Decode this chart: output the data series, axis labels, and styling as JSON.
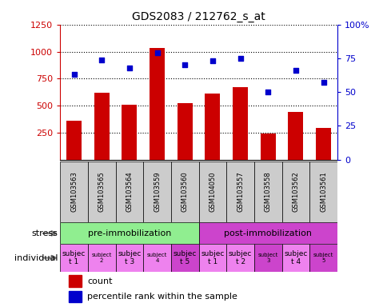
{
  "title": "GDS2083 / 212762_s_at",
  "samples": [
    "GSM103563",
    "GSM103565",
    "GSM103564",
    "GSM103559",
    "GSM103560",
    "GSM104050",
    "GSM103557",
    "GSM103558",
    "GSM103562",
    "GSM103561"
  ],
  "counts": [
    360,
    620,
    510,
    1030,
    520,
    610,
    670,
    240,
    440,
    295
  ],
  "percentiles": [
    63,
    74,
    68,
    79,
    70,
    73,
    75,
    50,
    66,
    57
  ],
  "ylim_left": [
    0,
    1250
  ],
  "ylim_right": [
    0,
    100
  ],
  "yticks_left": [
    250,
    500,
    750,
    1000,
    1250
  ],
  "yticks_right": [
    0,
    25,
    50,
    75,
    100
  ],
  "stress_groups": [
    {
      "label": "pre-immobilization",
      "start": 0,
      "end": 5,
      "color": "#90EE90"
    },
    {
      "label": "post-immobilization",
      "start": 5,
      "end": 10,
      "color": "#CC44CC"
    }
  ],
  "individuals": [
    {
      "text": "subjec\nt 1",
      "color": "#EE82EE"
    },
    {
      "text": "subject\n2",
      "color": "#EE82EE",
      "small": true
    },
    {
      "text": "subjec\nt 3",
      "color": "#EE82EE"
    },
    {
      "text": "subject\n4",
      "color": "#EE82EE",
      "small": true
    },
    {
      "text": "subjec\nt 5",
      "color": "#CC44CC"
    },
    {
      "text": "subjec\nt 1",
      "color": "#EE82EE"
    },
    {
      "text": "subjec\nt 2",
      "color": "#EE82EE"
    },
    {
      "text": "subject\n3",
      "color": "#CC44CC",
      "small": true
    },
    {
      "text": "subjec\nt 4",
      "color": "#EE82EE"
    },
    {
      "text": "subject\n5",
      "color": "#CC44CC",
      "small": true
    }
  ],
  "bar_color": "#CC0000",
  "dot_color": "#0000CC",
  "sample_box_color": "#CCCCCC",
  "axis_color_left": "#CC0000",
  "axis_color_right": "#0000CC"
}
